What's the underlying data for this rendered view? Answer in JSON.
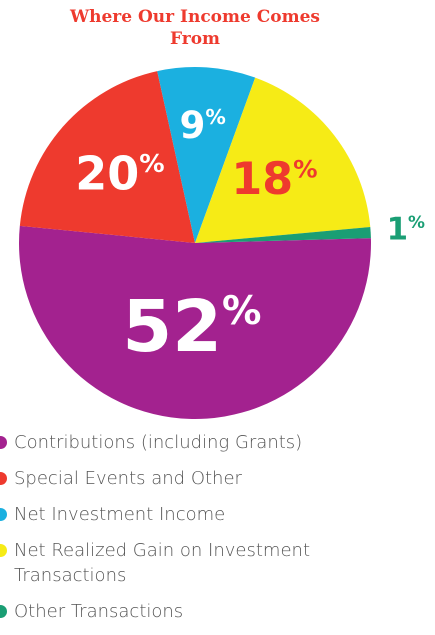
{
  "chart_data": {
    "type": "pie",
    "title": "Where Our Income Comes From",
    "categories": [
      "Contributions (including Grants)",
      "Special Events and Other",
      "Net Investment Income",
      "Net Realized Gain on Investment Transactions",
      "Other Transactions"
    ],
    "values": [
      52,
      20,
      9,
      18,
      1
    ],
    "value_labels": [
      "52%",
      "20%",
      "9%",
      "18%",
      "1%"
    ],
    "colors": [
      "#a3228f",
      "#ee3a2e",
      "#1bb0e0",
      "#f6eb16",
      "#1a9e74"
    ],
    "label_colors": [
      "#ffffff",
      "#ffffff",
      "#ffffff",
      "#ee3a2e",
      "#1a9e74"
    ]
  }
}
